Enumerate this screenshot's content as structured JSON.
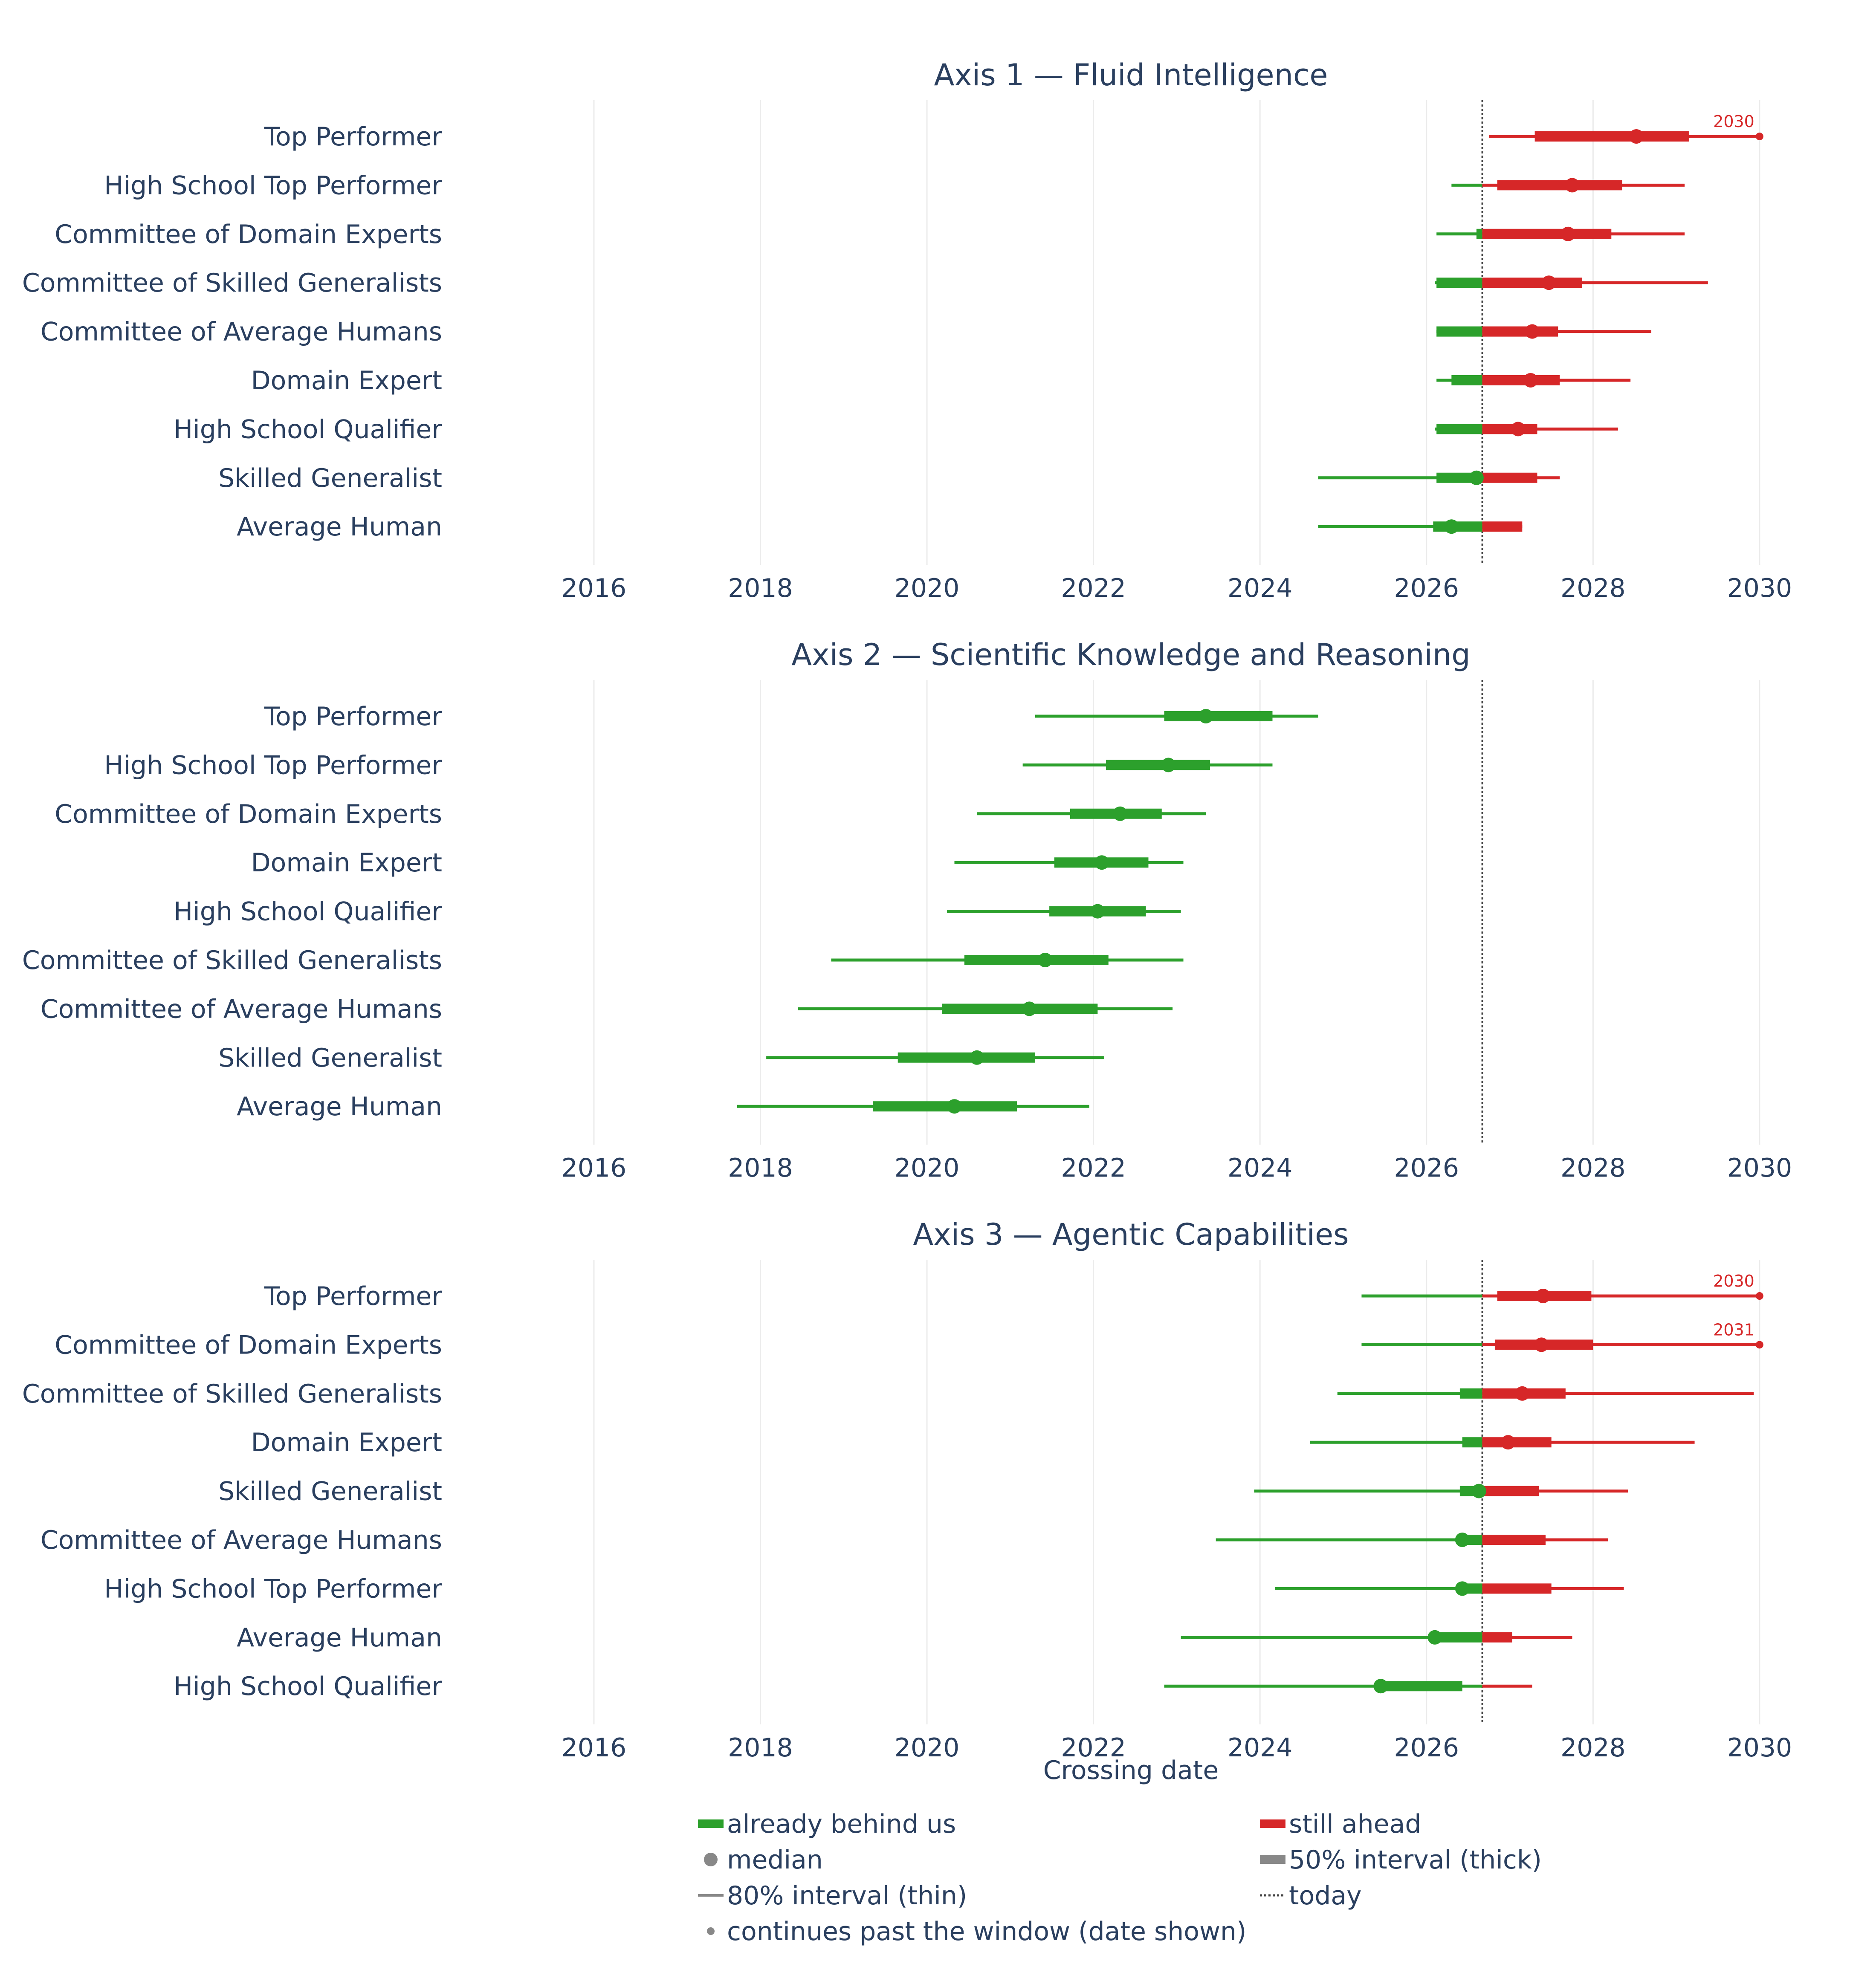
{
  "chart_data": {
    "type": "range-dot",
    "x_label": "Crossing date",
    "x_ticks": [
      2016,
      2018,
      2020,
      2022,
      2024,
      2026,
      2028,
      2030
    ],
    "xlim": [
      2014.5,
      2030.4
    ],
    "today": 2026.67,
    "colors": {
      "behind": "#2ca02c",
      "ahead": "#d62728",
      "neutral": "#888888",
      "today": "#444444"
    },
    "panels": [
      {
        "title": "Axis 1 — Fluid Intelligence",
        "rows": [
          {
            "label": "Top Performer",
            "median": 2028.52,
            "p25": 2027.3,
            "p75": 2029.15,
            "p10": 2026.75,
            "p90": 2030.0,
            "overflow_label": "2030"
          },
          {
            "label": "High School Top Performer",
            "median": 2027.75,
            "p25": 2026.85,
            "p75": 2028.35,
            "p10": 2026.3,
            "p90": 2029.1
          },
          {
            "label": "Committee of Domain Experts",
            "median": 2027.7,
            "p25": 2026.6,
            "p75": 2028.22,
            "p10": 2026.12,
            "p90": 2029.1
          },
          {
            "label": "Committee of Skilled Generalists",
            "median": 2027.47,
            "p25": 2026.12,
            "p75": 2027.87,
            "p10": 2026.1,
            "p90": 2029.38
          },
          {
            "label": "Committee of Average Humans",
            "median": 2027.27,
            "p25": 2026.12,
            "p75": 2027.58,
            "p10": 2026.12,
            "p90": 2028.7
          },
          {
            "label": "Domain Expert",
            "median": 2027.25,
            "p25": 2026.3,
            "p75": 2027.6,
            "p10": 2026.12,
            "p90": 2028.45
          },
          {
            "label": "High School Qualifier",
            "median": 2027.1,
            "p25": 2026.12,
            "p75": 2027.33,
            "p10": 2026.1,
            "p90": 2028.3
          },
          {
            "label": "Skilled Generalist",
            "median": 2026.6,
            "p25": 2026.12,
            "p75": 2027.33,
            "p10": 2024.7,
            "p90": 2027.6
          },
          {
            "label": "Average Human",
            "median": 2026.3,
            "p25": 2026.08,
            "p75": 2027.15,
            "p10": 2024.7,
            "p90": 2027.15
          }
        ]
      },
      {
        "title": "Axis 2 — Scientific Knowledge and Reasoning",
        "rows": [
          {
            "label": "Top Performer",
            "median": 2023.35,
            "p25": 2022.85,
            "p75": 2024.15,
            "p10": 2021.3,
            "p90": 2024.7
          },
          {
            "label": "High School Top Performer",
            "median": 2022.9,
            "p25": 2022.15,
            "p75": 2023.4,
            "p10": 2021.15,
            "p90": 2024.15
          },
          {
            "label": "Committee of Domain Experts",
            "median": 2022.32,
            "p25": 2021.72,
            "p75": 2022.82,
            "p10": 2020.6,
            "p90": 2023.35
          },
          {
            "label": "Domain Expert",
            "median": 2022.1,
            "p25": 2021.53,
            "p75": 2022.66,
            "p10": 2020.33,
            "p90": 2023.08
          },
          {
            "label": "High School Qualifier",
            "median": 2022.05,
            "p25": 2021.47,
            "p75": 2022.63,
            "p10": 2020.24,
            "p90": 2023.05
          },
          {
            "label": "Committee of Skilled Generalists",
            "median": 2021.42,
            "p25": 2020.45,
            "p75": 2022.18,
            "p10": 2018.85,
            "p90": 2023.08
          },
          {
            "label": "Committee of Average Humans",
            "median": 2021.23,
            "p25": 2020.18,
            "p75": 2022.05,
            "p10": 2018.45,
            "p90": 2022.95
          },
          {
            "label": "Skilled Generalist",
            "median": 2020.6,
            "p25": 2019.65,
            "p75": 2021.3,
            "p10": 2018.07,
            "p90": 2022.13
          },
          {
            "label": "Average Human",
            "median": 2020.33,
            "p25": 2019.35,
            "p75": 2021.08,
            "p10": 2017.72,
            "p90": 2021.95
          }
        ]
      },
      {
        "title": "Axis 3 — Agentic Capabilities",
        "rows": [
          {
            "label": "Top Performer",
            "median": 2027.4,
            "p25": 2026.85,
            "p75": 2027.98,
            "p10": 2025.22,
            "p90": 2030.0,
            "overflow_label": "2030"
          },
          {
            "label": "Committee of Domain Experts",
            "median": 2027.38,
            "p25": 2026.82,
            "p75": 2028.0,
            "p10": 2025.22,
            "p90": 2030.0,
            "overflow_label": "2031"
          },
          {
            "label": "Committee of Skilled Generalists",
            "median": 2027.15,
            "p25": 2026.4,
            "p75": 2027.67,
            "p10": 2024.93,
            "p90": 2029.93
          },
          {
            "label": "Domain Expert",
            "median": 2026.98,
            "p25": 2026.43,
            "p75": 2027.5,
            "p10": 2024.6,
            "p90": 2029.22
          },
          {
            "label": "Skilled Generalist",
            "median": 2026.63,
            "p25": 2026.4,
            "p75": 2027.35,
            "p10": 2023.93,
            "p90": 2028.42
          },
          {
            "label": "Committee of Average Humans",
            "median": 2026.43,
            "p25": 2026.43,
            "p75": 2027.43,
            "p10": 2023.47,
            "p90": 2028.18
          },
          {
            "label": "High School Top Performer",
            "median": 2026.43,
            "p25": 2026.43,
            "p75": 2027.5,
            "p10": 2024.18,
            "p90": 2028.37
          },
          {
            "label": "Average Human",
            "median": 2026.1,
            "p25": 2026.1,
            "p75": 2027.03,
            "p10": 2023.05,
            "p90": 2027.75
          },
          {
            "label": "High School Qualifier",
            "median": 2025.45,
            "p25": 2025.45,
            "p75": 2026.43,
            "p10": 2022.85,
            "p90": 2027.27
          }
        ]
      }
    ],
    "legend": [
      {
        "key": "behind",
        "label": "already behind us",
        "symbol": "thick-green"
      },
      {
        "key": "ahead",
        "label": "still ahead",
        "symbol": "thick-red"
      },
      {
        "key": "median",
        "label": "median",
        "symbol": "dot"
      },
      {
        "key": "iqr",
        "label": "50% interval (thick)",
        "symbol": "thick-gray"
      },
      {
        "key": "p80",
        "label": "80% interval (thin)",
        "symbol": "thin-gray"
      },
      {
        "key": "today",
        "label": "today",
        "symbol": "dotted"
      },
      {
        "key": "overflow",
        "label": "continues past the window (date shown)",
        "symbol": "small-dot"
      }
    ]
  }
}
